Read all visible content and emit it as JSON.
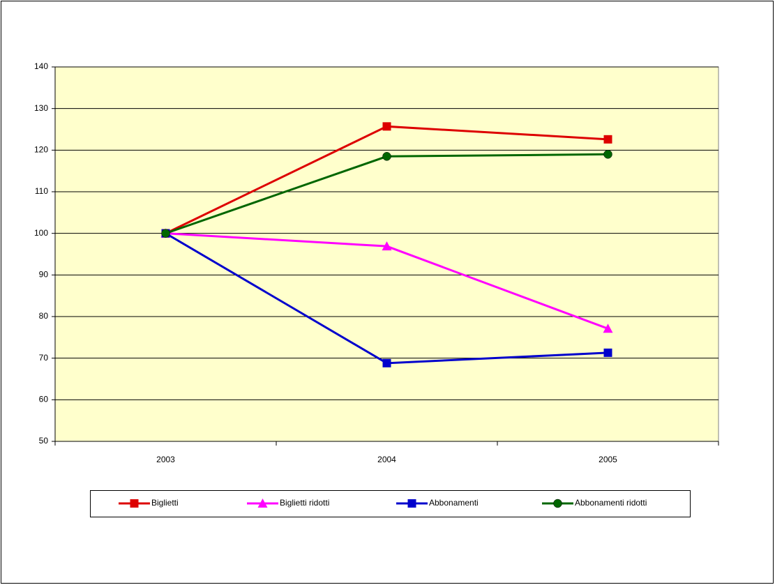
{
  "chart_data": {
    "type": "line",
    "categories": [
      "2003",
      "2004",
      "2005"
    ],
    "series": [
      {
        "name": "Biglietti",
        "color": "#dd0000",
        "marker": "square",
        "values": [
          100,
          125.7,
          122.6
        ]
      },
      {
        "name": "Biglietti ridotti",
        "color": "#ff00ff",
        "marker": "triangle",
        "values": [
          100,
          96.9,
          77.1
        ]
      },
      {
        "name": "Abbonamenti",
        "color": "#0000cc",
        "marker": "square",
        "values": [
          100,
          68.8,
          71.3
        ]
      },
      {
        "name": "Abbonamenti ridotti",
        "color": "#006600",
        "marker": "circle",
        "values": [
          100,
          118.5,
          119.0
        ]
      }
    ],
    "ylim": [
      50,
      140
    ],
    "yticks": [
      50,
      60,
      70,
      80,
      90,
      100,
      110,
      120,
      130,
      140
    ],
    "grid": true,
    "background": "#ffffcc",
    "legend": "bottom"
  }
}
